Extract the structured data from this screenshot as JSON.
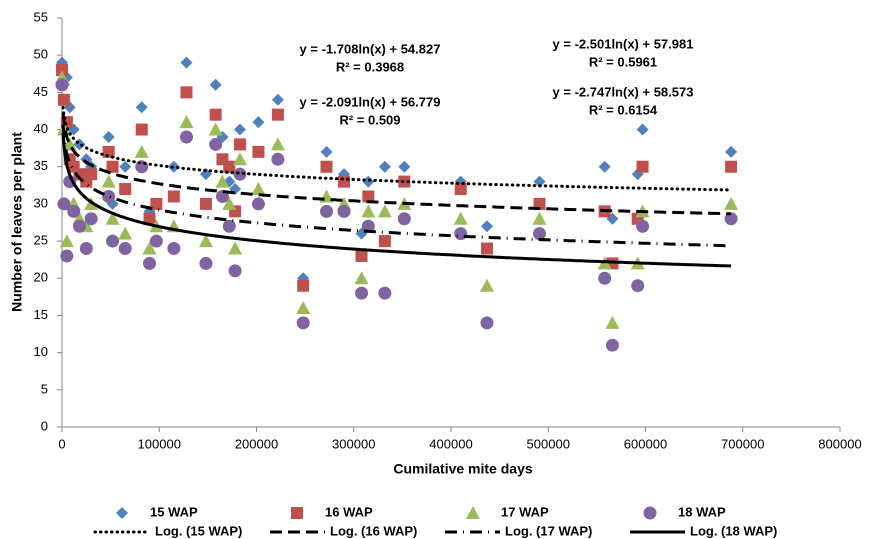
{
  "chart_data": {
    "type": "scatter",
    "x_label": "Cumilative mite days",
    "y_label": "Number of leaves per plant",
    "xlim": [
      0,
      800000
    ],
    "xticks": [
      0,
      100000,
      200000,
      300000,
      400000,
      500000,
      600000,
      700000,
      800000
    ],
    "ylim": [
      0,
      55
    ],
    "yticks": [
      0,
      5,
      10,
      15,
      20,
      25,
      30,
      35,
      40,
      45,
      50,
      55
    ],
    "grid": false,
    "x": [
      0,
      2000,
      5000,
      8000,
      12000,
      18000,
      25000,
      30000,
      48000,
      52000,
      65000,
      82000,
      90000,
      97000,
      115000,
      128000,
      148000,
      158000,
      165000,
      172000,
      178000,
      183000,
      202000,
      222000,
      248000,
      272000,
      290000,
      308000,
      315000,
      332000,
      352000,
      410000,
      437000,
      491000,
      558000,
      566000,
      592000,
      597000,
      688000
    ],
    "series": [
      {
        "name": "15 WAP",
        "color": "#4f81bd",
        "marker": "diamond",
        "values": [
          49,
          46,
          47,
          43,
          40,
          38,
          36,
          35,
          39,
          30,
          35,
          43,
          29,
          30,
          35,
          49,
          34,
          46,
          39,
          33,
          32,
          40,
          41,
          44,
          20,
          37,
          34,
          26,
          33,
          35,
          35,
          33,
          27,
          33,
          35,
          28,
          34,
          40,
          37
        ]
      },
      {
        "name": "16 WAP",
        "color": "#c0504d",
        "marker": "square",
        "values": [
          48,
          44,
          41,
          36,
          35,
          34,
          33,
          34,
          37,
          35,
          32,
          40,
          28,
          30,
          31,
          45,
          30,
          42,
          36,
          35,
          29,
          38,
          37,
          42,
          19,
          35,
          33,
          23,
          31,
          25,
          33,
          32,
          24,
          30,
          29,
          22,
          28,
          35,
          35
        ]
      },
      {
        "name": "17 WAP",
        "color": "#9bbb59",
        "marker": "triangle",
        "values": [
          47,
          40,
          25,
          38,
          30,
          28,
          27,
          30,
          33,
          28,
          26,
          37,
          24,
          27,
          27,
          41,
          25,
          40,
          33,
          30,
          24,
          36,
          32,
          38,
          16,
          31,
          30,
          20,
          29,
          29,
          30,
          28,
          19,
          28,
          22,
          14,
          22,
          29,
          30
        ]
      },
      {
        "name": "18 WAP",
        "color": "#8064a2",
        "marker": "circle",
        "values": [
          46,
          30,
          23,
          33,
          29,
          27,
          24,
          28,
          31,
          25,
          24,
          35,
          22,
          25,
          24,
          39,
          22,
          38,
          31,
          27,
          21,
          34,
          30,
          36,
          14,
          29,
          29,
          18,
          27,
          18,
          28,
          26,
          14,
          26,
          20,
          11,
          19,
          27,
          28
        ]
      }
    ],
    "trendlines": [
      {
        "name": "Log. (15 WAP)",
        "style": "dotted",
        "equation": "y = -1.708ln(x) + 54.827",
        "r_squared": "R² = 0.3968",
        "a": -1.708,
        "b": 54.827
      },
      {
        "name": "Log. (16 WAP)",
        "style": "dashed",
        "equation": "y = -2.091ln(x) + 56.779",
        "r_squared": "R² = 0.509",
        "a": -2.091,
        "b": 56.779
      },
      {
        "name": "Log. (17 WAP)",
        "style": "dashdot",
        "equation": "y = -2.501ln(x) + 57.981",
        "r_squared": "R² = 0.5961",
        "a": -2.501,
        "b": 57.981
      },
      {
        "name": "Log. (18 WAP)",
        "style": "solid",
        "equation": "y = -2.747ln(x) + 58.573",
        "r_squared": "R² = 0.6154",
        "a": -2.747,
        "b": 58.573
      }
    ]
  }
}
